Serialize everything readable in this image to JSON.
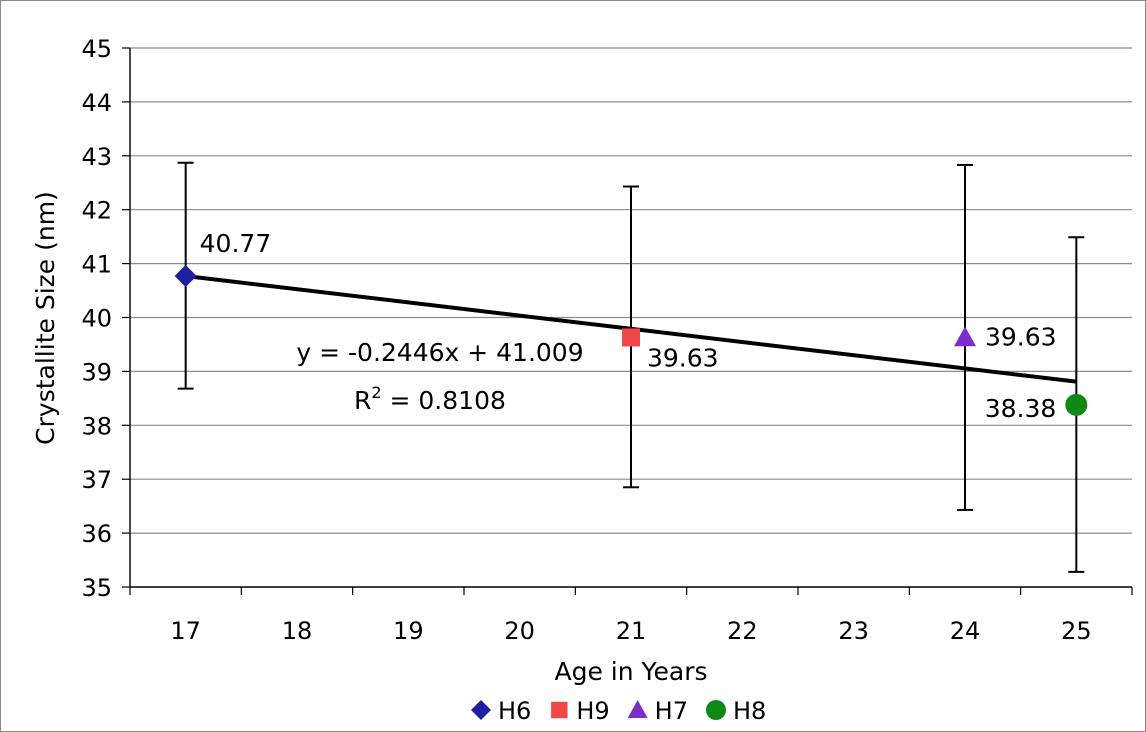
{
  "chart_data": {
    "type": "scatter",
    "title": "",
    "xlabel": "Age in Years",
    "ylabel": "Crystallite Size (nm)",
    "categories": [
      "17",
      "18",
      "19",
      "20",
      "21",
      "22",
      "23",
      "24",
      "25"
    ],
    "ylim": [
      35,
      45
    ],
    "yticks": [
      "35",
      "36",
      "37",
      "38",
      "39",
      "40",
      "41",
      "42",
      "43",
      "44",
      "45"
    ],
    "grid": "horizontal",
    "legend_position": "bottom",
    "series": [
      {
        "name": "H6",
        "x": "17",
        "y": 40.77,
        "label": "40.77",
        "err_low": 38.68,
        "err_high": 42.87,
        "marker": "diamond",
        "color": "#1f1fa0"
      },
      {
        "name": "H9",
        "x": "21",
        "y": 39.63,
        "label": "39.63",
        "err_low": 36.85,
        "err_high": 42.43,
        "marker": "square",
        "color": "#f04848"
      },
      {
        "name": "H7",
        "x": "24",
        "y": 39.63,
        "label": "39.63",
        "err_low": 36.43,
        "err_high": 42.83,
        "marker": "triangle",
        "color": "#7a30c8"
      },
      {
        "name": "H8",
        "x": "25",
        "y": 38.38,
        "label": "38.38",
        "err_low": 35.28,
        "err_high": 41.49,
        "marker": "circle",
        "color": "#0e8a14"
      }
    ],
    "trendline": {
      "type": "linear",
      "x_start": "17",
      "x_end": "25",
      "y_start": 40.77,
      "y_end": 38.81,
      "equation_label": "y = -0.2446x + 41.009",
      "r2_label": "R",
      "r2_superscript": "2",
      "r2_value_label": " = 0.8108"
    }
  }
}
